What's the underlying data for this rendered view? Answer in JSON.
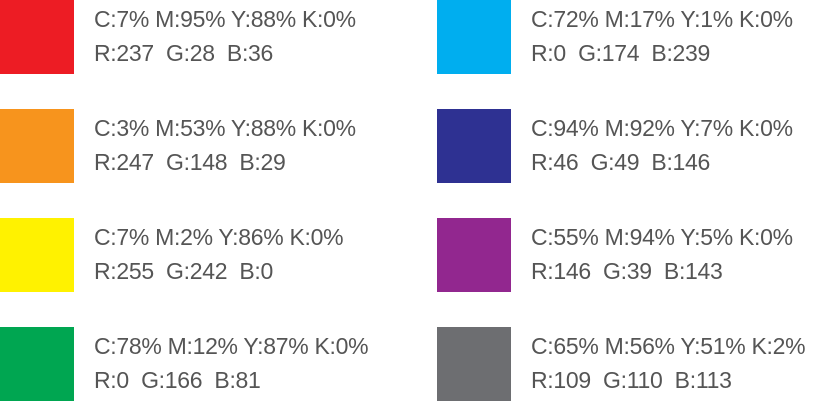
{
  "swatches": [
    {
      "color": "#ed1c24",
      "cmyk": "C:7% M:95% Y:88% K:0%",
      "rgb": "R:237  G:28  B:36"
    },
    {
      "color": "#f7941d",
      "cmyk": "C:3% M:53% Y:88% K:0%",
      "rgb": "R:247  G:148  B:29"
    },
    {
      "color": "#fff200",
      "cmyk": "C:7% M:2% Y:86% K:0%",
      "rgb": "R:255  G:242  B:0"
    },
    {
      "color": "#00a651",
      "cmyk": "C:78% M:12% Y:87% K:0%",
      "rgb": "R:0  G:166  B:81"
    },
    {
      "color": "#00aeef",
      "cmyk": "C:72% M:17% Y:1% K:0%",
      "rgb": "R:0  G:174  B:239"
    },
    {
      "color": "#2e3192",
      "cmyk": "C:94% M:92% Y:7% K:0%",
      "rgb": "R:46  G:49  B:146"
    },
    {
      "color": "#92278f",
      "cmyk": "C:55% M:94% Y:5% K:0%",
      "rgb": "R:146  G:39  B:143"
    },
    {
      "color": "#6d6e71",
      "cmyk": "C:65% M:56% Y:51% K:2%",
      "rgb": "R:109  G:110  B:113"
    }
  ]
}
